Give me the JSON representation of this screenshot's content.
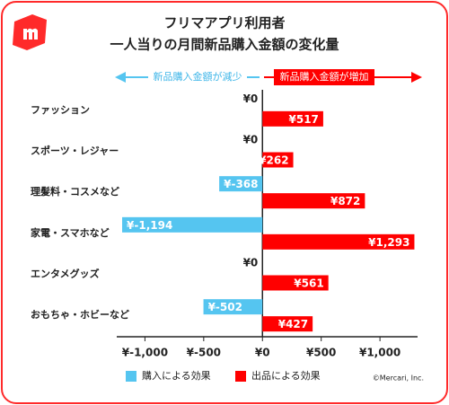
{
  "chart_data": {
    "type": "bar",
    "orientation": "horizontal",
    "title": "フリマアプリ利用者",
    "subtitle": "一人当りの月間新品購入金額の変化量",
    "annotations": [
      "新品購入金額が減少",
      "新品購入金額が増加"
    ],
    "credit": "©Mercari, Inc.",
    "categories": [
      "ファッション",
      "スポーツ・レジャー",
      "理髪料・コスメなど",
      "家電・スマホなど",
      "エンタメグッズ",
      "おもちゃ・ホビーなど"
    ],
    "series": [
      {
        "name": "購入による効果",
        "color": "#55c5f0",
        "values": [
          0,
          0,
          -368,
          -1194,
          0,
          -502
        ],
        "value_labels": [
          "¥0",
          "¥0",
          "¥-368",
          "¥-1,194",
          "¥0",
          "¥-502"
        ]
      },
      {
        "name": "出品による効果",
        "color": "#ff0000",
        "values": [
          517,
          262,
          872,
          1293,
          561,
          427
        ],
        "value_labels": [
          "¥517",
          "¥262",
          "¥872",
          "¥1,293",
          "¥561",
          "¥427"
        ]
      }
    ],
    "xlim": [
      -1240,
      1320
    ],
    "xticks": [
      {
        "value": -1000,
        "label": "¥-1,000"
      },
      {
        "value": -500,
        "label": "¥-500"
      },
      {
        "value": 0,
        "label": "¥0"
      },
      {
        "value": 500,
        "label": "¥500"
      },
      {
        "value": 1000,
        "label": "¥1,000"
      }
    ],
    "legend": "bottom-left"
  }
}
